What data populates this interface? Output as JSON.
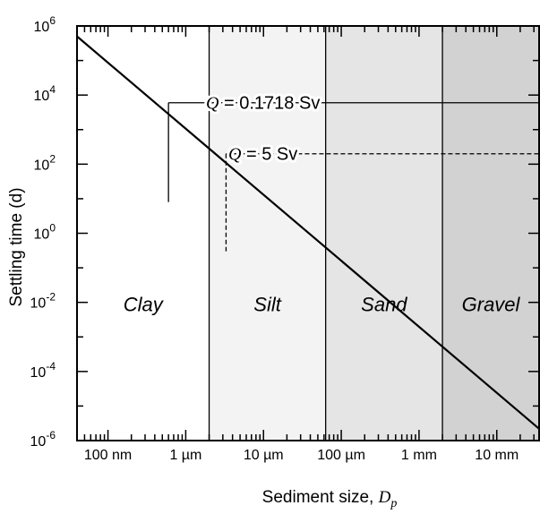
{
  "chart_data": {
    "type": "line",
    "xlabel": "Sediment size, ",
    "xlabel_sub": "p",
    "xlabel_var": "D",
    "ylabel": "Settling time (d)",
    "x_unit": "m",
    "y_unit": "d",
    "x_scale": "log",
    "y_scale": "log",
    "xlim": [
      4e-08,
      0.035
    ],
    "ylim": [
      1e-06,
      1000000.0
    ],
    "x_ticks": [
      {
        "value": 1e-07,
        "label": "100 nm"
      },
      {
        "value": 1e-06,
        "label": "1 µm"
      },
      {
        "value": 1e-05,
        "label": "10 µm"
      },
      {
        "value": 0.0001,
        "label": "100 µm"
      },
      {
        "value": 0.001,
        "label": "1 mm"
      },
      {
        "value": 0.01,
        "label": "10 mm"
      }
    ],
    "y_ticks": [
      {
        "exp": 6,
        "base": "10",
        "sup": "6"
      },
      {
        "exp": 4,
        "base": "10",
        "sup": "4"
      },
      {
        "exp": 2,
        "base": "10",
        "sup": "2"
      },
      {
        "exp": 0,
        "base": "10",
        "sup": "0"
      },
      {
        "exp": -2,
        "base": "10",
        "sup": "-2"
      },
      {
        "exp": -4,
        "base": "10",
        "sup": "-4"
      },
      {
        "exp": -6,
        "base": "10",
        "sup": "-6"
      }
    ],
    "regions": [
      {
        "name": "Clay",
        "from": 4e-08,
        "to": 2e-06,
        "color": "#ffffff"
      },
      {
        "name": "Silt",
        "from": 2e-06,
        "to": 6.3e-05,
        "color": "#f3f3f3"
      },
      {
        "name": "Sand",
        "from": 6.3e-05,
        "to": 0.002,
        "color": "#e5e5e5"
      },
      {
        "name": "Gravel",
        "from": 0.002,
        "to": 0.035,
        "color": "#d2d2d2"
      }
    ],
    "series": [
      {
        "x": [
          4e-08,
          0.035
        ],
        "y": [
          500000,
          2.2e-06
        ]
      }
    ],
    "annotations": [
      {
        "q_symbol": "Q",
        "text": " = 0.1718 Sv",
        "style": "solid",
        "x": 6e-07,
        "y": 6000,
        "y_drop": 8
      },
      {
        "q_symbol": "Q",
        "text": " = 5 Sv",
        "style": "dashed",
        "x": 3.3e-06,
        "y": 200,
        "y_drop": 0.3
      }
    ],
    "grid": false,
    "legend": "none"
  }
}
